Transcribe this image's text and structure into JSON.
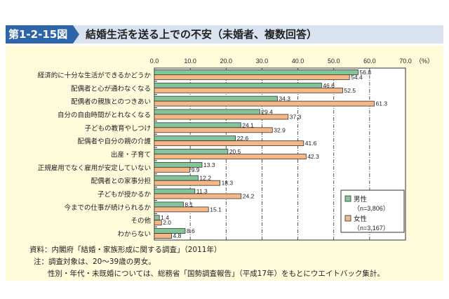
{
  "header": {
    "figure_number": "第1-2-15図",
    "title": "結婚生活を送る上での不安（未婚者、複数回答）"
  },
  "chart_data": {
    "type": "bar",
    "orientation": "horizontal",
    "title": "結婚生活を送る上での不安（未婚者、複数回答）",
    "unit_label": "（%）",
    "xlim": [
      0,
      70
    ],
    "x_ticks": [
      "0.0",
      "10.0",
      "20.0",
      "30.0",
      "40.0",
      "50.0",
      "60.0",
      "70.0"
    ],
    "grid": true,
    "legend_position": "bottom-right",
    "categories": [
      "経済的に十分な生活ができるかどうか",
      "配偶者と心が通わなくなる",
      "配偶者の親族とのつきあい",
      "自分の自由時間がとれなくなる",
      "子どもの教育やしつけ",
      "配偶者や自分の親の介護",
      "出産・子育て",
      "正規雇用でなく雇用が安定していない",
      "配偶者との家事分担",
      "子どもが授かるか",
      "今までの仕事が続けられるか",
      "その他",
      "わからない"
    ],
    "series": [
      {
        "name": "男性",
        "n_label": "（n=3,806）",
        "color": "#84c49a",
        "values": [
          "56.8",
          "46.6",
          "34.3",
          "29.4",
          "24.1",
          "22.6",
          "20.5",
          "13.3",
          "12.2",
          "11.3",
          "8.1",
          "1.4",
          "8.6"
        ]
      },
      {
        "name": "女性",
        "n_label": "（n=3,167）",
        "color": "#f6b785",
        "values": [
          "54.4",
          "52.5",
          "61.3",
          "37.3",
          "32.9",
          "41.6",
          "42.3",
          "9.9",
          "18.3",
          "24.2",
          "15.1",
          "2.0",
          "4.8"
        ]
      }
    ]
  },
  "notes": {
    "source": "資料：内閣府「結婚・家族形成に関する調査」（2011年）",
    "note1": "注：調査対象は、20～39歳の男女。",
    "note2": "性別・年代・未既婚については、総務省「国勢調査報告」（平成17年）をもとにウエイトバック集計。"
  }
}
